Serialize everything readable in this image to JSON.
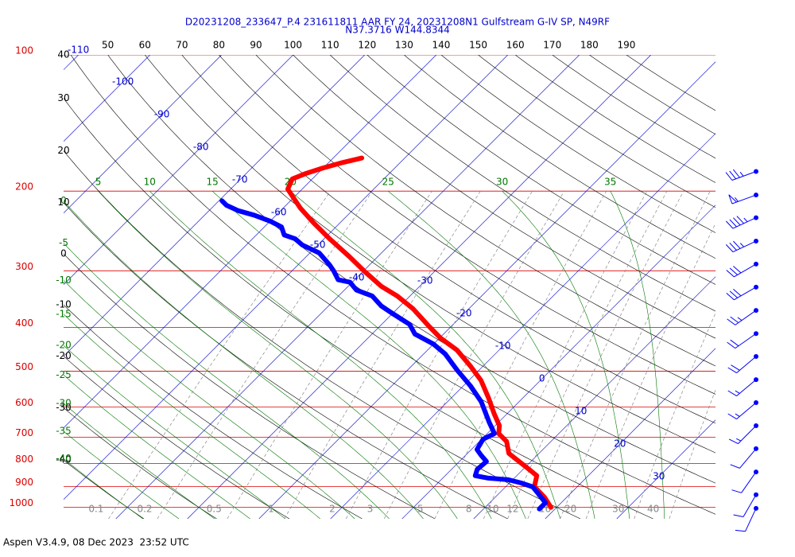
{
  "chart_data": {
    "type": "skew-t",
    "title": "D20231208_233647_P.4 231611811 AAR FY 24, 20231208N1 Gulfstream G-IV SP, N49RF",
    "subtitle": "N37.3716 W144.8344",
    "footer": "Aspen V3.4.9, 08 Dec 2023  23:52 UTC",
    "log_scale": true,
    "ylim": [
      1060,
      100
    ],
    "yticks": [
      100,
      200,
      300,
      400,
      500,
      600,
      700,
      800,
      900,
      1000
    ],
    "xlim": [
      -47.3,
      43.8
    ],
    "isotherms": [
      -110,
      -100,
      -90,
      -80,
      -70,
      -60,
      -50,
      -40,
      -30,
      -20,
      -10,
      0,
      10,
      20,
      30
    ],
    "dry_adiabats": [
      -40,
      -30,
      -20,
      -10,
      0,
      10,
      20,
      30,
      40,
      50,
      60,
      70,
      80,
      90,
      100,
      110,
      120,
      130,
      140,
      150,
      160,
      170,
      180,
      190
    ],
    "moist_adiabats": [
      -40,
      -35,
      -30,
      -25,
      -20,
      -15,
      -10,
      -5,
      0,
      5,
      10,
      15,
      20,
      25,
      30,
      35
    ],
    "mixing_ratios": [
      0.1,
      0.2,
      0.5,
      1,
      2,
      3,
      5,
      8,
      10,
      12,
      16,
      20,
      30,
      40
    ],
    "isobar_color": "#dd0000",
    "isotherm_color": "#0000cc",
    "dry_adiabat_color": "#000000",
    "moist_adiabat_color": "#007700",
    "mixing_ratio_color": "#888888",
    "temperature": {
      "color": "#ff0000",
      "pressure": [
        1000,
        950,
        900,
        851,
        817,
        785,
        760,
        715,
        687,
        660,
        621,
        573,
        524,
        487,
        449,
        423,
        398,
        364,
        341,
        325,
        302,
        279,
        255,
        235,
        218,
        206,
        198,
        188,
        183,
        178,
        173,
        169
      ],
      "values": [
        19.2,
        16.9,
        14.0,
        12.8,
        10.3,
        7.8,
        5.8,
        3.8,
        1.6,
        0.6,
        -1.8,
        -4.8,
        -8.3,
        -11.8,
        -15.9,
        -19.8,
        -23.1,
        -27.8,
        -31.8,
        -35.3,
        -39.6,
        -44.0,
        -49.2,
        -53.7,
        -57.6,
        -60.2,
        -62.0,
        -62.8,
        -61.7,
        -60.1,
        -58.1,
        -56.0
      ]
    },
    "dewpoint": {
      "color": "#0000ff",
      "pressure": [
        1008,
        977,
        938,
        901,
        883,
        869,
        862,
        851,
        824,
        792,
        766,
        745,
        707,
        687,
        647,
        584,
        539,
        497,
        458,
        435,
        414,
        394,
        374,
        359,
        341,
        331,
        318,
        314,
        300,
        291,
        274,
        263,
        255,
        250,
        240,
        233,
        226,
        221,
        215,
        210
      ],
      "values": [
        17.8,
        17.8,
        15.8,
        13.8,
        11.6,
        9.4,
        6.4,
        4.2,
        3.6,
        3.8,
        2.1,
        0.8,
        0.2,
        1.0,
        -1.4,
        -5.3,
        -9.0,
        -13.1,
        -17.0,
        -20.1,
        -24.0,
        -26.1,
        -29.8,
        -32.6,
        -35.3,
        -38.3,
        -40.3,
        -42.3,
        -44.2,
        -45.6,
        -48.7,
        -52.2,
        -54.0,
        -56.1,
        -57.6,
        -60.0,
        -63.1,
        -65.9,
        -68.3,
        -69.6
      ]
    },
    "wind": {
      "color": "#0000ff",
      "pressure": [
        181,
        204,
        229,
        258,
        290,
        326,
        367,
        413,
        464,
        522,
        587,
        660,
        742,
        835,
        938,
        1005
      ],
      "speed": [
        35,
        55,
        45,
        35,
        30,
        30,
        25,
        20,
        20,
        15,
        15,
        15,
        10,
        10,
        10,
        10
      ],
      "direction": [
        250,
        250,
        245,
        245,
        240,
        240,
        235,
        235,
        230,
        230,
        230,
        225,
        220,
        215,
        210,
        205
      ]
    }
  }
}
